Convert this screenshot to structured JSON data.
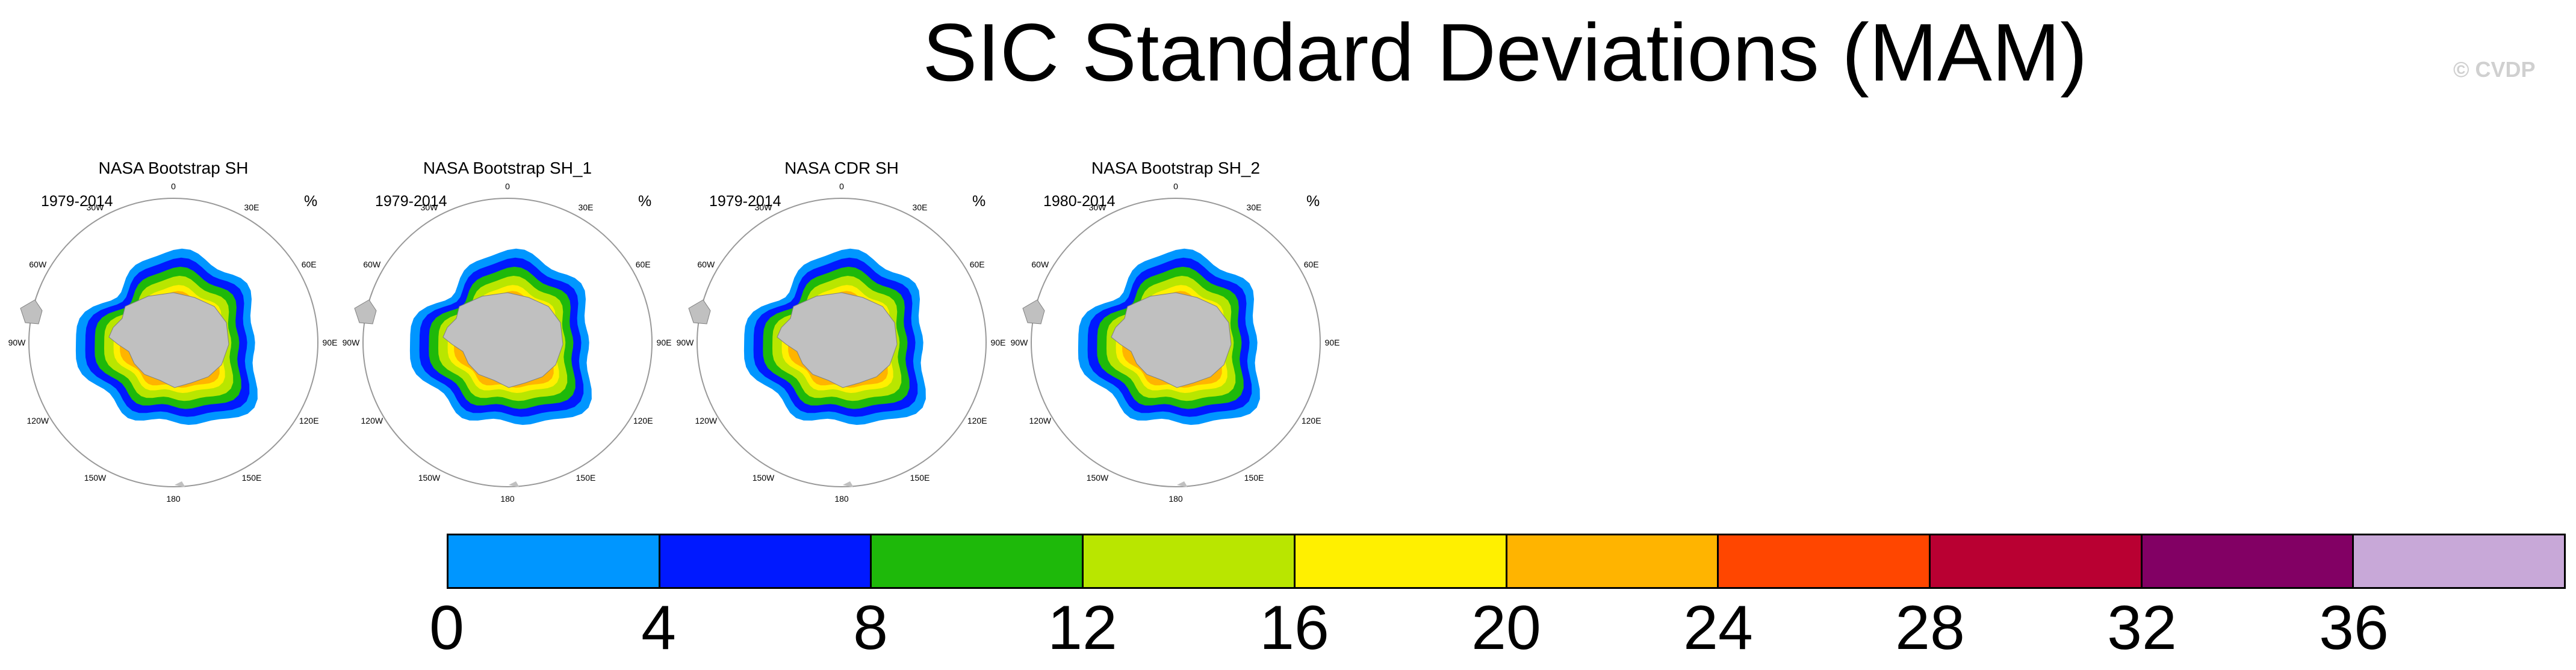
{
  "page": {
    "title": "SIC Standard Deviations (MAM)",
    "watermark": "© CVDP"
  },
  "panels": [
    {
      "title": "NASA Bootstrap SH",
      "period": "1979-2014",
      "unit": "%"
    },
    {
      "title": "NASA Bootstrap SH_1",
      "period": "1979-2014",
      "unit": "%"
    },
    {
      "title": "NASA CDR SH",
      "period": "1979-2014",
      "unit": "%"
    },
    {
      "title": "NASA Bootstrap SH_2",
      "period": "1980-2014",
      "unit": "%"
    }
  ],
  "longitude_labels": [
    "0",
    "30E",
    "60E",
    "90E",
    "120E",
    "150E",
    "180",
    "150W",
    "120W",
    "90W",
    "60W",
    "30W"
  ],
  "colors": {
    "land": "#c0c0c0",
    "levels": [
      "#0096ff",
      "#0019ff",
      "#1eb90a",
      "#b9e600",
      "#fff000",
      "#ffb400",
      "#ff4600",
      "#b90032",
      "#820064",
      "#c8a8d8"
    ]
  },
  "chart_data": {
    "type": "heatmap",
    "title": "SIC Standard Deviations (MAM)",
    "map_projection": "south polar stereographic",
    "panels": [
      "NASA Bootstrap SH",
      "NASA Bootstrap SH_1",
      "NASA CDR SH",
      "NASA Bootstrap SH_2"
    ],
    "periods": [
      "1979-2014",
      "1979-2014",
      "1979-2014",
      "1980-2014"
    ],
    "units": "%",
    "colorbar": {
      "levels": [
        0,
        4,
        8,
        12,
        16,
        20,
        24,
        28,
        32,
        36
      ],
      "tick_labels": [
        "0",
        "4",
        "8",
        "12",
        "16",
        "20",
        "24",
        "28",
        "32",
        "36"
      ],
      "colors": [
        "#0096ff",
        "#0019ff",
        "#1eb90a",
        "#b9e600",
        "#fff000",
        "#ffb400",
        "#ff4600",
        "#b90032",
        "#820064",
        "#c8a8d8"
      ]
    }
  }
}
